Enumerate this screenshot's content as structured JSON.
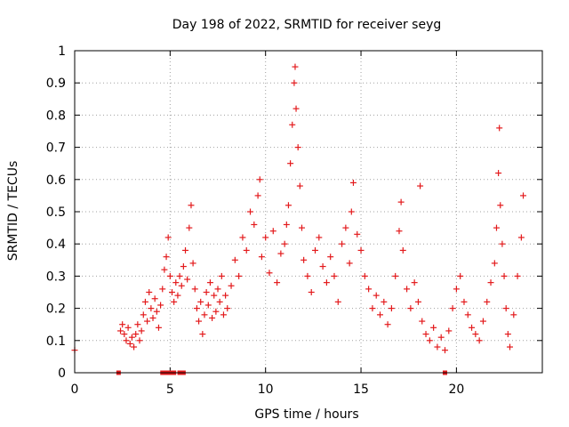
{
  "chart_data": {
    "type": "scatter",
    "title": "Day 198 of 2022, SRMTID for receiver seyg",
    "xlabel": "GPS time / hours",
    "ylabel": "SRMTID / TECUs",
    "xlim": [
      0,
      24.5
    ],
    "ylim": [
      0,
      1
    ],
    "x_ticks": [
      0,
      5,
      10,
      15,
      20
    ],
    "y_ticks": [
      0,
      0.1,
      0.2,
      0.3,
      0.4,
      0.5,
      0.6,
      0.7,
      0.8,
      0.9,
      1
    ],
    "x_tick_labels": [
      "0",
      "5",
      "10",
      "15",
      "20"
    ],
    "y_tick_labels": [
      "0",
      "0.1",
      "0.2",
      "0.3",
      "0.4",
      "0.5",
      "0.6",
      "0.7",
      "0.8",
      "0.9",
      "1"
    ],
    "grid": true,
    "marker": "+",
    "color": "#e31a1c",
    "series": [
      {
        "name": "SRMTID",
        "points": [
          [
            0.0,
            0.07
          ],
          [
            2.4,
            0.13
          ],
          [
            2.5,
            0.15
          ],
          [
            2.6,
            0.12
          ],
          [
            2.7,
            0.1
          ],
          [
            2.8,
            0.14
          ],
          [
            2.9,
            0.09
          ],
          [
            3.0,
            0.11
          ],
          [
            3.1,
            0.08
          ],
          [
            3.2,
            0.12
          ],
          [
            3.3,
            0.15
          ],
          [
            3.4,
            0.1
          ],
          [
            3.5,
            0.13
          ],
          [
            3.6,
            0.18
          ],
          [
            3.7,
            0.22
          ],
          [
            3.8,
            0.16
          ],
          [
            3.9,
            0.25
          ],
          [
            4.0,
            0.2
          ],
          [
            4.1,
            0.17
          ],
          [
            4.2,
            0.23
          ],
          [
            4.3,
            0.19
          ],
          [
            4.4,
            0.14
          ],
          [
            4.5,
            0.21
          ],
          [
            4.6,
            0.26
          ],
          [
            4.7,
            0.32
          ],
          [
            4.8,
            0.36
          ],
          [
            4.9,
            0.42
          ],
          [
            5.0,
            0.3
          ],
          [
            5.1,
            0.25
          ],
          [
            5.2,
            0.22
          ],
          [
            5.3,
            0.28
          ],
          [
            5.4,
            0.24
          ],
          [
            5.5,
            0.3
          ],
          [
            5.6,
            0.27
          ],
          [
            5.7,
            0.33
          ],
          [
            5.8,
            0.38
          ],
          [
            5.9,
            0.29
          ],
          [
            6.0,
            0.45
          ],
          [
            6.1,
            0.52
          ],
          [
            6.2,
            0.34
          ],
          [
            6.3,
            0.26
          ],
          [
            6.4,
            0.2
          ],
          [
            6.5,
            0.16
          ],
          [
            6.6,
            0.22
          ],
          [
            6.7,
            0.12
          ],
          [
            6.8,
            0.18
          ],
          [
            6.9,
            0.25
          ],
          [
            7.0,
            0.21
          ],
          [
            7.1,
            0.28
          ],
          [
            7.2,
            0.17
          ],
          [
            7.3,
            0.24
          ],
          [
            7.4,
            0.19
          ],
          [
            7.5,
            0.26
          ],
          [
            7.6,
            0.22
          ],
          [
            7.7,
            0.3
          ],
          [
            7.8,
            0.18
          ],
          [
            7.9,
            0.24
          ],
          [
            8.0,
            0.2
          ],
          [
            8.2,
            0.27
          ],
          [
            8.4,
            0.35
          ],
          [
            8.6,
            0.3
          ],
          [
            8.8,
            0.42
          ],
          [
            9.0,
            0.38
          ],
          [
            9.2,
            0.5
          ],
          [
            9.4,
            0.46
          ],
          [
            9.6,
            0.55
          ],
          [
            9.7,
            0.6
          ],
          [
            9.8,
            0.36
          ],
          [
            10.0,
            0.42
          ],
          [
            10.2,
            0.31
          ],
          [
            10.4,
            0.44
          ],
          [
            10.6,
            0.28
          ],
          [
            10.8,
            0.37
          ],
          [
            11.0,
            0.4
          ],
          [
            11.1,
            0.46
          ],
          [
            11.2,
            0.52
          ],
          [
            11.3,
            0.65
          ],
          [
            11.4,
            0.77
          ],
          [
            11.5,
            0.9
          ],
          [
            11.55,
            0.95
          ],
          [
            11.6,
            0.82
          ],
          [
            11.7,
            0.7
          ],
          [
            11.8,
            0.58
          ],
          [
            11.9,
            0.45
          ],
          [
            12.0,
            0.35
          ],
          [
            12.2,
            0.3
          ],
          [
            12.4,
            0.25
          ],
          [
            12.6,
            0.38
          ],
          [
            12.8,
            0.42
          ],
          [
            13.0,
            0.33
          ],
          [
            13.2,
            0.28
          ],
          [
            13.4,
            0.36
          ],
          [
            13.6,
            0.3
          ],
          [
            13.8,
            0.22
          ],
          [
            14.0,
            0.4
          ],
          [
            14.2,
            0.45
          ],
          [
            14.4,
            0.34
          ],
          [
            14.5,
            0.5
          ],
          [
            14.6,
            0.59
          ],
          [
            14.8,
            0.43
          ],
          [
            15.0,
            0.38
          ],
          [
            15.2,
            0.3
          ],
          [
            15.4,
            0.26
          ],
          [
            15.6,
            0.2
          ],
          [
            15.8,
            0.24
          ],
          [
            16.0,
            0.18
          ],
          [
            16.2,
            0.22
          ],
          [
            16.4,
            0.15
          ],
          [
            16.6,
            0.2
          ],
          [
            16.8,
            0.3
          ],
          [
            17.0,
            0.44
          ],
          [
            17.1,
            0.53
          ],
          [
            17.2,
            0.38
          ],
          [
            17.4,
            0.26
          ],
          [
            17.6,
            0.2
          ],
          [
            17.8,
            0.28
          ],
          [
            18.0,
            0.22
          ],
          [
            18.1,
            0.58
          ],
          [
            18.2,
            0.16
          ],
          [
            18.4,
            0.12
          ],
          [
            18.6,
            0.1
          ],
          [
            18.8,
            0.14
          ],
          [
            19.0,
            0.08
          ],
          [
            19.2,
            0.11
          ],
          [
            19.4,
            0.07
          ],
          [
            19.6,
            0.13
          ],
          [
            19.8,
            0.2
          ],
          [
            20.0,
            0.26
          ],
          [
            20.2,
            0.3
          ],
          [
            20.4,
            0.22
          ],
          [
            20.6,
            0.18
          ],
          [
            20.8,
            0.14
          ],
          [
            21.0,
            0.12
          ],
          [
            21.2,
            0.1
          ],
          [
            21.4,
            0.16
          ],
          [
            21.6,
            0.22
          ],
          [
            21.8,
            0.28
          ],
          [
            22.0,
            0.34
          ],
          [
            22.1,
            0.45
          ],
          [
            22.2,
            0.62
          ],
          [
            22.25,
            0.76
          ],
          [
            22.3,
            0.52
          ],
          [
            22.4,
            0.4
          ],
          [
            22.5,
            0.3
          ],
          [
            22.6,
            0.2
          ],
          [
            22.7,
            0.12
          ],
          [
            22.8,
            0.08
          ],
          [
            23.0,
            0.18
          ],
          [
            23.2,
            0.3
          ],
          [
            23.4,
            0.42
          ],
          [
            23.5,
            0.55
          ]
        ]
      }
    ],
    "zero_markers": [
      2.3,
      4.6,
      4.8,
      5.0,
      5.2,
      5.5,
      5.7,
      19.4
    ]
  }
}
